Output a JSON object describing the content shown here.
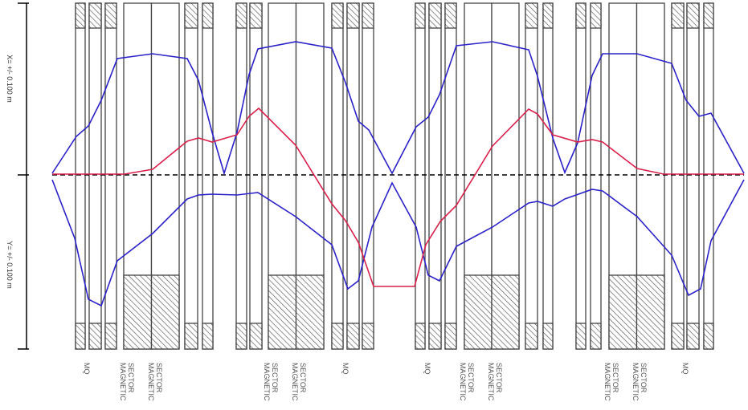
{
  "axis": {
    "x_label": "X= +/- 0.100 m",
    "y_label": "Y= +/- 0.100 m"
  },
  "element_labels": [
    {
      "text": "MQ",
      "lines": [
        "MQ"
      ]
    },
    {
      "text": "MAGNETIC SECTOR",
      "lines": [
        "MAGNETIC",
        "SECTOR"
      ]
    },
    {
      "text": "MAGNETIC SECTOR",
      "lines": [
        "MAGNETIC",
        "SECTOR"
      ]
    },
    {
      "text": "MAGNETIC SECTOR",
      "lines": [
        "MAGNETIC",
        "SECTOR"
      ]
    },
    {
      "text": "MAGNETIC SECTOR",
      "lines": [
        "MAGNETIC",
        "SECTOR"
      ]
    },
    {
      "text": "MQ",
      "lines": [
        "MQ"
      ]
    },
    {
      "text": "MQ",
      "lines": [
        "MQ"
      ]
    },
    {
      "text": "MAGNETIC SECTOR",
      "lines": [
        "MAGNETIC",
        "SECTOR"
      ]
    },
    {
      "text": "MAGNETIC SECTOR",
      "lines": [
        "MAGNETIC",
        "SECTOR"
      ]
    },
    {
      "text": "MAGNETIC SECTOR",
      "lines": [
        "MAGNETIC",
        "SECTOR"
      ]
    },
    {
      "text": "MAGNETIC SECTOR",
      "lines": [
        "MAGNETIC",
        "SECTOR"
      ]
    },
    {
      "text": "MQ",
      "lines": [
        "MQ"
      ]
    }
  ],
  "colors": {
    "envelope": "#2b22c8",
    "dispersion": "#d8204a",
    "axis": "#000000",
    "element_outline": "#444444"
  }
}
